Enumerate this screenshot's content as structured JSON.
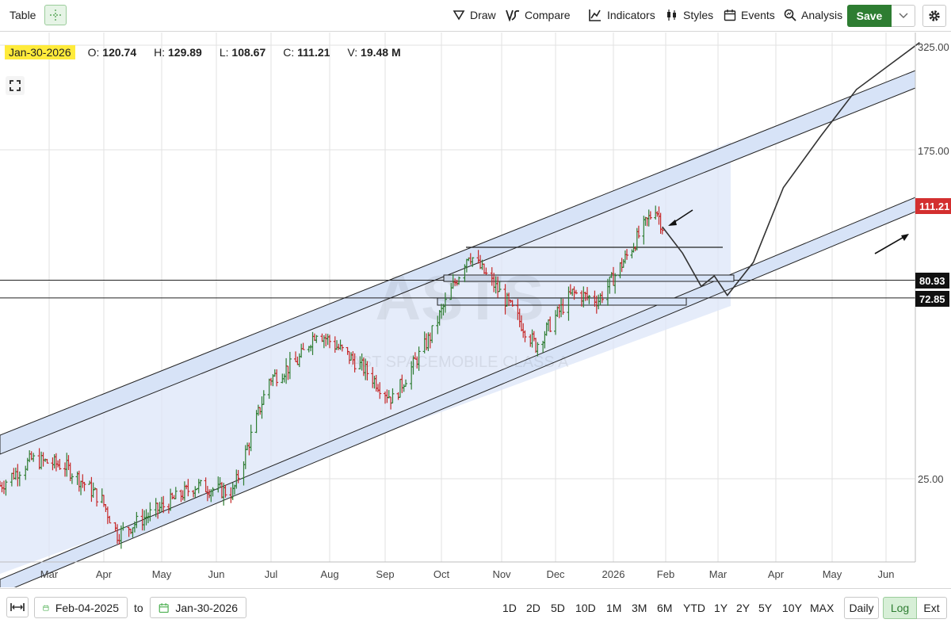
{
  "toolbar": {
    "table_label": "Table",
    "draw_label": "Draw",
    "compare_label": "Compare",
    "indicators_label": "Indicators",
    "styles_label": "Styles",
    "events_label": "Events",
    "analysis_label": "Analysis",
    "save_label": "Save"
  },
  "ohlc": {
    "date": "Jan-30-2026",
    "open_label": "O:",
    "open": "120.74",
    "high_label": "H:",
    "high": "129.89",
    "low_label": "L:",
    "low": "108.67",
    "close_label": "C:",
    "close": "111.21",
    "volume_label": "V:",
    "volume": "19.48 M"
  },
  "chart_data": {
    "type": "ohlc",
    "watermark_symbol": "ASTS",
    "watermark_name": "AST SPACEMOBILE CLASS A",
    "y_scale": "log",
    "y_ticks": [
      "325.00",
      "175.00",
      "25.00"
    ],
    "x_ticks": [
      "Mar",
      "Apr",
      "May",
      "Jun",
      "Jul",
      "Aug",
      "Sep",
      "Oct",
      "Nov",
      "Dec",
      "2026",
      "Feb",
      "Mar",
      "Apr",
      "May",
      "Jun"
    ],
    "last_price_flag": "111.21",
    "level_flags": [
      "80.93",
      "72.85"
    ],
    "levels": [
      80.93,
      72.85
    ],
    "price_path_approx": [
      {
        "date": "2025-02-04",
        "close": 24
      },
      {
        "date": "2025-02-20",
        "close": 28
      },
      {
        "date": "2025-03-10",
        "close": 27
      },
      {
        "date": "2025-03-31",
        "close": 22
      },
      {
        "date": "2025-04-08",
        "close": 18
      },
      {
        "date": "2025-04-30",
        "close": 21
      },
      {
        "date": "2025-05-20",
        "close": 24
      },
      {
        "date": "2025-06-10",
        "close": 23
      },
      {
        "date": "2025-06-30",
        "close": 45
      },
      {
        "date": "2025-07-15",
        "close": 50
      },
      {
        "date": "2025-07-25",
        "close": 60
      },
      {
        "date": "2025-08-20",
        "close": 48
      },
      {
        "date": "2025-09-05",
        "close": 40
      },
      {
        "date": "2025-09-25",
        "close": 58
      },
      {
        "date": "2025-10-15",
        "close": 95
      },
      {
        "date": "2025-11-05",
        "close": 70
      },
      {
        "date": "2025-11-20",
        "close": 55
      },
      {
        "date": "2025-12-10",
        "close": 75
      },
      {
        "date": "2025-12-24",
        "close": 72
      },
      {
        "date": "2026-01-10",
        "close": 95
      },
      {
        "date": "2026-01-26",
        "close": 125
      },
      {
        "date": "2026-01-30",
        "close": 111.21
      }
    ],
    "projection_path_approx": [
      {
        "date": "2026-01-30",
        "value": 111
      },
      {
        "date": "2026-02-10",
        "value": 95
      },
      {
        "date": "2026-02-20",
        "value": 78
      },
      {
        "date": "2026-02-27",
        "value": 83
      },
      {
        "date": "2026-03-06",
        "value": 74
      },
      {
        "date": "2026-03-20",
        "value": 90
      },
      {
        "date": "2026-04-05",
        "value": 140
      },
      {
        "date": "2026-04-25",
        "value": 190
      },
      {
        "date": "2026-05-15",
        "value": 250
      },
      {
        "date": "2026-06-20",
        "value": 330
      }
    ]
  },
  "bottom": {
    "from_date": "Feb-04-2025",
    "to_label": "to",
    "to_date": "Jan-30-2026",
    "periods": [
      "1D",
      "2D",
      "5D",
      "10D",
      "1M",
      "3M",
      "6M",
      "YTD",
      "1Y",
      "2Y",
      "5Y",
      "10Y",
      "MAX"
    ],
    "interval_label": "Daily",
    "log_label": "Log",
    "ext_label": "Ext"
  },
  "colors": {
    "up": "#2e7d32",
    "down": "#c62828",
    "channel_fill": "#dce6f8",
    "last_price_flag": "#d32f2f",
    "level_flag": "#111111",
    "highlight": "#ffeb3b",
    "accent_green": "#2e7d32"
  }
}
